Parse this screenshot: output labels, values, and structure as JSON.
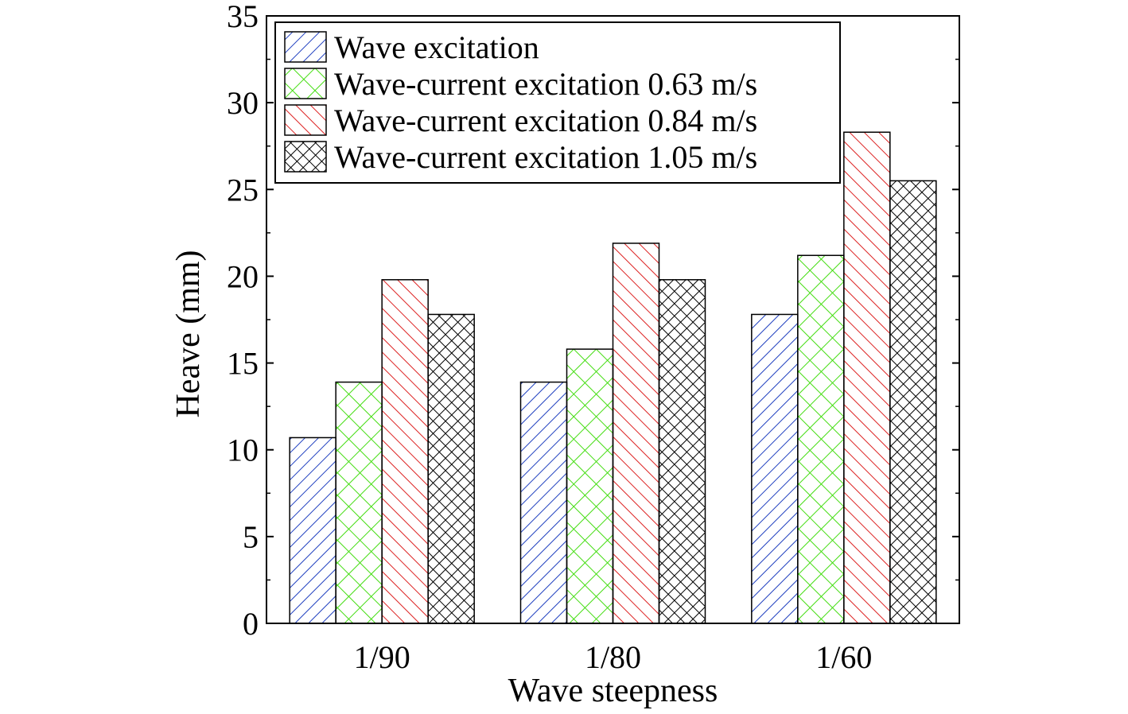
{
  "chart_data": {
    "type": "bar",
    "xlabel": "Wave steepness",
    "ylabel": "Heave (mm)",
    "categories": [
      "1/90",
      "1/80",
      "1/60"
    ],
    "ylim": [
      0,
      35
    ],
    "yticks": [
      0,
      5,
      10,
      15,
      20,
      25,
      30,
      35
    ],
    "grid": false,
    "legend_position": "top-left",
    "series": [
      {
        "name": "Wave excitation",
        "values": [
          10.7,
          13.9,
          17.8
        ],
        "color": "#1f3fbf",
        "pattern": "diagonal-hatch"
      },
      {
        "name": "Wave-current excitation 0.63 m/s",
        "values": [
          13.9,
          15.8,
          21.2
        ],
        "color": "#44dd11",
        "pattern": "crosshatch"
      },
      {
        "name": "Wave-current excitation 0.84 m/s",
        "values": [
          19.8,
          21.9,
          28.3
        ],
        "color": "#dd2222",
        "pattern": "back-diagonal-hatch"
      },
      {
        "name": "Wave-current excitation 1.05 m/s",
        "values": [
          17.8,
          19.8,
          25.5
        ],
        "color": "#000000",
        "pattern": "dense-crosshatch"
      }
    ]
  }
}
